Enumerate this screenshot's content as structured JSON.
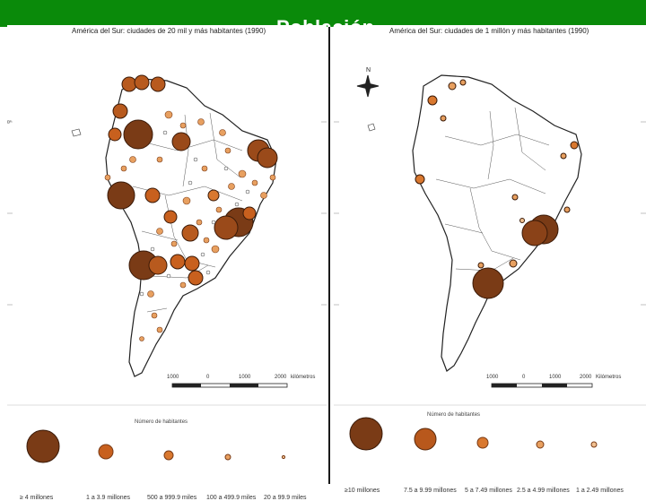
{
  "slide": {
    "title": "Población",
    "accent_color": "#0a8a0a"
  },
  "left_map": {
    "title": "América del Sur: ciudades de 20 mil y más habitantes (1990)",
    "scale_labels": [
      "1000",
      "0",
      "1000",
      "2000",
      "kilómetros"
    ],
    "legend_title": "Número de habitantes",
    "legend": [
      {
        "label": "≥ 4 millones",
        "color": "#7a3b16"
      },
      {
        "label": "1 a 3.9 millones",
        "color": "#c8601e"
      },
      {
        "label": "500 a 999.9 miles",
        "color": "#d9782f"
      },
      {
        "label": "100 a 499.9 miles",
        "color": "#e8a060"
      },
      {
        "label": "20 a 99.9 miles",
        "color": "#f0c090"
      }
    ]
  },
  "right_map": {
    "title": "América del Sur: ciudades de 1 millón y más habitantes (1990)",
    "scale_labels": [
      "1000",
      "0",
      "1000",
      "2000",
      "Kilómetros"
    ],
    "legend_title": "Número de habitantes",
    "north_label": "N",
    "legend": [
      {
        "label": "≥10 millones",
        "color": "#7a3b16"
      },
      {
        "label": "7.5 a 9.99 millones",
        "color": "#b8581c"
      },
      {
        "label": "5 a 7.49 millones",
        "color": "#d9782f"
      },
      {
        "label": "2.5 a 4.99 millones",
        "color": "#e8a060"
      },
      {
        "label": "1 a 2.49 millones",
        "color": "#f0c090"
      }
    ]
  }
}
